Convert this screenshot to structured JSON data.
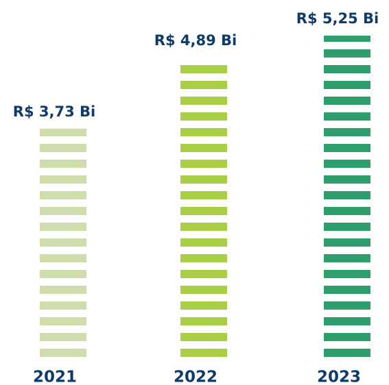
{
  "chart_data": {
    "type": "bar",
    "categories": [
      "2021",
      "2022",
      "2023"
    ],
    "values": [
      3.73,
      4.89,
      5.25
    ],
    "value_labels": [
      "R$ 3,73 Bi",
      "R$ 4,89 Bi",
      "R$ 5,25 Bi"
    ],
    "colors": [
      "#cfdcab",
      "#a8cf45",
      "#2e9e6c"
    ]
  }
}
